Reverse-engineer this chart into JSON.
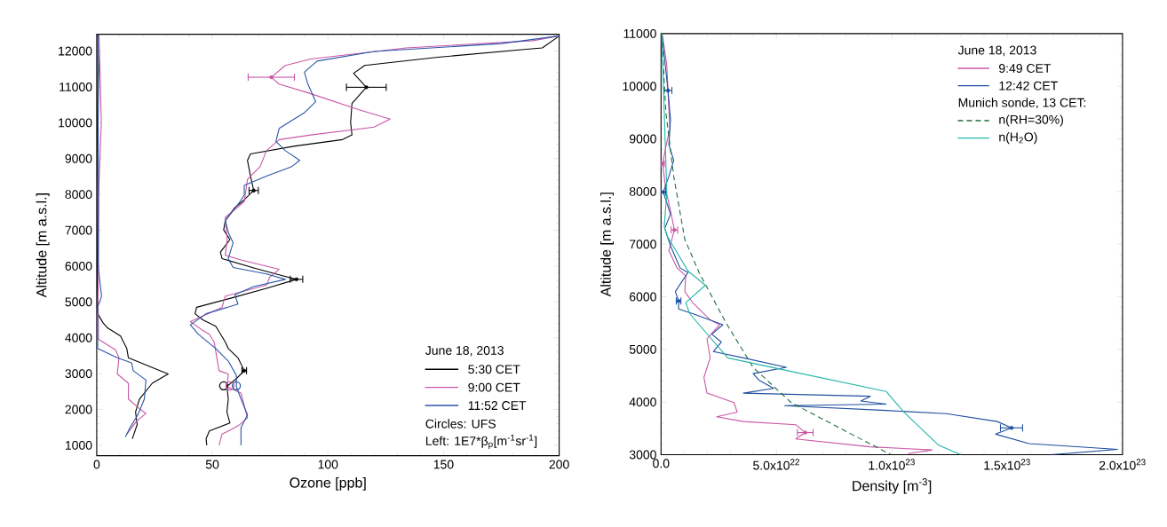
{
  "chart_data": [
    {
      "type": "line",
      "xlabel": "Ozone [ppb]",
      "ylabel": "Altitude [m a.s.l.]",
      "legend_title": "June 18, 2013",
      "annotations": [
        "Circles: UFS",
        "Left: 1E7*β$_{p}$[m$^{-1}$sr$^{-1}$]"
      ],
      "xlim": [
        0,
        200
      ],
      "ylim": [
        710,
        12470
      ],
      "xticks": [
        0,
        50,
        100,
        150,
        200
      ],
      "yticks": [
        1000,
        2000,
        3000,
        4000,
        5000,
        6000,
        7000,
        8000,
        9000,
        10000,
        11000,
        12000
      ],
      "legend": "bottom right",
      "series": [
        {
          "name": "5:30 CET",
          "color": "#000000",
          "x": [
            199.6,
            192.7,
            185.9,
            147.5,
            115.9,
            111.1,
            116.6,
            110.4,
            109.8,
            110.4,
            106.3,
            85.7,
            66.5,
            65.2,
            66.5,
            67.9,
            63.8,
            59.7,
            55.6,
            54.9,
            57.6,
            53.5,
            54.2,
            67.9,
            80.3,
            86.4,
            73.4,
            58.3,
            43.2,
            42.5,
            45.9,
            51.5,
            55.6,
            56.9,
            61.1,
            63.8,
            60.4,
            56.3,
            56.9,
            56.3,
            57.6,
            48.7,
            47.3,
            47.6
          ],
          "values": [
            12400,
            12090,
            12050,
            11830,
            11600,
            11380,
            10990,
            10540,
            10010,
            9660,
            9530,
            9350,
            9130,
            8950,
            8510,
            8110,
            7850,
            7630,
            7270,
            7010,
            6740,
            6390,
            6210,
            5950,
            5730,
            5630,
            5380,
            5110,
            4850,
            4670,
            4500,
            4320,
            3880,
            3700,
            3440,
            3080,
            2860,
            2640,
            2290,
            1930,
            1620,
            1400,
            1180,
            1000
          ],
          "xerrors": [
            null,
            null,
            null,
            null,
            null,
            null,
            8.6,
            null,
            null,
            null,
            null,
            null,
            null,
            null,
            null,
            2,
            null,
            null,
            null,
            null,
            null,
            null,
            null,
            null,
            null,
            2.7,
            null,
            null,
            null,
            null,
            null,
            null,
            null,
            null,
            null,
            1,
            null,
            null,
            null,
            null,
            null,
            null,
            null,
            null
          ]
        },
        {
          "name": "9:00 CET",
          "color": "#c957a6",
          "x": [
            199.6,
            188.6,
            133.8,
            92.6,
            81.6,
            75.5,
            78.9,
            92.6,
            113.2,
            126.9,
            120.0,
            92.6,
            78.9,
            73.4,
            70.7,
            65.2,
            63.8,
            55.6,
            56.4,
            55.6,
            62.4,
            78.9,
            74.8,
            73.4,
            55.6,
            54.2,
            40.5,
            45.3,
            48.7,
            50.8,
            52.9,
            56.9,
            56.3,
            62.4,
            65.2,
            61.1,
            54.2,
            52.9
          ],
          "values": [
            12420,
            12290,
            12090,
            11780,
            11600,
            11270,
            11080,
            10810,
            10370,
            10100,
            9880,
            9660,
            9530,
            9220,
            8780,
            8420,
            7800,
            7360,
            6740,
            6300,
            6170,
            5910,
            5690,
            5470,
            5160,
            4850,
            4450,
            4230,
            4100,
            3880,
            3080,
            2990,
            2640,
            2460,
            1760,
            1540,
            1310,
            1000
          ],
          "xerrors": [
            null,
            null,
            null,
            null,
            null,
            10,
            null,
            null,
            null,
            null,
            null,
            null,
            null,
            null,
            null,
            null,
            null,
            null,
            null,
            null,
            null,
            null,
            null,
            null,
            null,
            null,
            null,
            null,
            null,
            null,
            null,
            null,
            null,
            null,
            null,
            null,
            null,
            null
          ]
        },
        {
          "name": "11:52 CET",
          "color": "#2a55a8",
          "x": [
            199.6,
            174.9,
            120.0,
            95.3,
            89.8,
            91.2,
            94.7,
            89.8,
            78.9,
            77.5,
            81.6,
            87.8,
            84.4,
            73.4,
            63.8,
            63.8,
            61.1,
            55.6,
            57.0,
            59.0,
            56.9,
            58.3,
            59.0,
            73.4,
            81.6,
            67.9,
            59.7,
            61.1,
            47.3,
            40.5,
            43.9,
            51.5,
            56.9,
            60.4,
            60.4,
            62.4,
            65.2,
            62.4,
            62.4
          ],
          "values": [
            12420,
            12210,
            11990,
            11720,
            11410,
            11100,
            10590,
            10280,
            9840,
            9480,
            9220,
            8950,
            8780,
            8510,
            8250,
            7980,
            7720,
            7270,
            6920,
            6650,
            6210,
            6040,
            5960,
            5780,
            5630,
            5430,
            5200,
            4940,
            4670,
            4360,
            4100,
            3700,
            3350,
            2950,
            2640,
            2290,
            1850,
            1490,
            1000
          ]
        },
        {
          "color": "#000000",
          "x": [
            0.5,
            0.3,
            0.4,
            0.3,
            0.3,
            0.4,
            2.8,
            4.8,
            10.3,
            13.0,
            13.7,
            24.0,
            30.9,
            24.0,
            18.5,
            16.8,
            17.5,
            15.4
          ],
          "values": [
            12470,
            10000,
            8000,
            6000,
            5000,
            4670,
            4410,
            4270,
            4050,
            3700,
            3440,
            3170,
            2990,
            2730,
            2290,
            1930,
            1580,
            1180
          ]
        },
        {
          "color": "#c957a6",
          "x": [
            1.0,
            2.0,
            0.8,
            0.8,
            0.5,
            0.7,
            0.7,
            8.2,
            9.6,
            8.9,
            13.7,
            13.7,
            18.5,
            21.3,
            17.2,
            13.0
          ],
          "values": [
            12470,
            10000,
            8000,
            6000,
            5000,
            4670,
            3960,
            3660,
            3440,
            2990,
            2730,
            2290,
            2020,
            1890,
            1670,
            1310
          ]
        },
        {
          "color": "#2a55a8",
          "x": [
            0.5,
            1.0,
            0.6,
            0.8,
            0.6,
            2.1,
            0.4,
            0.4,
            8.9,
            15.1,
            15.8,
            21.3,
            20.6,
            17.8,
            14.4,
            12.4
          ],
          "values": [
            12470,
            11500,
            10000,
            8000,
            6000,
            5160,
            4850,
            3700,
            3440,
            3300,
            3080,
            2820,
            2290,
            1850,
            1490,
            1230
          ]
        },
        {
          "type": "scatter",
          "marker": "circle",
          "color": "#000000",
          "x": [
            54.9
          ],
          "values": [
            2660
          ]
        },
        {
          "type": "scatter",
          "marker": "circle",
          "color": "#c957a6",
          "x": [
            57.6
          ],
          "values": [
            2660
          ]
        },
        {
          "type": "scatter",
          "marker": "circle",
          "color": "#2a55a8",
          "x": [
            60.4
          ],
          "values": [
            2660
          ]
        }
      ]
    },
    {
      "type": "line",
      "xlabel": "Density [m$^{-3}$]",
      "ylabel": "Altitude [m a.s.l.]",
      "legend_title": "June 18, 2013",
      "annotations": [
        "Munich sonde, 13 CET:"
      ],
      "xlim": [
        0,
        2e+23
      ],
      "ylim": [
        3000,
        11000
      ],
      "xticks": [
        {
          "value": 0,
          "label": "0.0"
        },
        {
          "value": 5e+22,
          "label": "5.0x10$^{22}$"
        },
        {
          "value": 1e+23,
          "label": "1.0x10$^{23}$"
        },
        {
          "value": 1.5e+23,
          "label": "1.5x10$^{23}$"
        },
        {
          "value": 2e+23,
          "label": "2.0x10$^{23}$"
        }
      ],
      "yticks": [
        3000,
        4000,
        5000,
        6000,
        7000,
        8000,
        9000,
        10000,
        11000
      ],
      "legend": "top right",
      "series": [
        {
          "name": "9:49 CET",
          "color": "#c957a6",
          "x": [
            5e+20,
            2.5e+21,
            3e+21,
            3.8e+21,
            2e+21,
            7e+20,
            2e+21,
            4.4e+21,
            5.8e+21,
            3.4e+21,
            6.9e+21,
            1.07e+22,
            1.03e+22,
            1.37e+22,
            2.13e+22,
            2.54e+22,
            1.99e+22,
            2.13e+22,
            1.86e+22,
            1.99e+22,
            3.16e+22,
            3.3e+22,
            2.41e+22,
            3.57e+22,
            5.84e+22,
            6.25e+22,
            5.84e+22,
            9.07e+22,
            1.175e+23,
            1.07e+23
          ],
          "values": [
            11000,
            10400,
            9920,
            9190,
            8830,
            8530,
            8050,
            7570,
            7270,
            6880,
            6550,
            6400,
            6100,
            5890,
            5560,
            5470,
            5200,
            4840,
            4470,
            4170,
            3990,
            3810,
            3720,
            3630,
            3570,
            3420,
            3300,
            3150,
            3090,
            3020
          ],
          "xerrors": [
            null,
            null,
            null,
            null,
            null,
            7e+20,
            null,
            null,
            1.4e+21,
            null,
            null,
            null,
            null,
            null,
            null,
            null,
            null,
            null,
            null,
            null,
            null,
            null,
            null,
            null,
            null,
            3.4e+21,
            null,
            null,
            null,
            null
          ]
        },
        {
          "name": "12:42 CET",
          "color": "#1f4f9e",
          "x": [
            3e+20,
            1.4e+21,
            3e+21,
            4.1e+21,
            3.4e+21,
            5.5e+21,
            3.4e+21,
            1e+21,
            4.1e+21,
            1.6e+21,
            4.1e+21,
            8.2e+21,
            1.17e+22,
            8.9e+21,
            6.2e+21,
            7.6e+21,
            7.6e+21,
            1.37e+22,
            2.68e+22,
            2.2e+22,
            2.61e+22,
            2.27e+22,
            3.57e+22,
            5.43e+22,
            3.99e+22,
            4.26e+22,
            4.88e+22,
            3.57e+22,
            9.07e+22,
            8.66e+22,
            9.76e+22,
            5.36e+22,
            9.76e+22,
            1.237e+23,
            1.457e+23,
            1.519e+23,
            1.45e+23,
            1.595e+23,
            1.979e+23,
            1.691e+23
          ],
          "values": [
            11000,
            10580,
            9920,
            9370,
            8890,
            8590,
            8290,
            7990,
            7570,
            7300,
            6970,
            6550,
            6460,
            6280,
            6100,
            5920,
            5770,
            5680,
            5470,
            5290,
            5140,
            4960,
            4840,
            4660,
            4540,
            4410,
            4260,
            4170,
            4110,
            4020,
            3960,
            3930,
            3840,
            3780,
            3630,
            3510,
            3390,
            3210,
            3100,
            3000
          ],
          "xerrors": [
            null,
            null,
            1.7e+21,
            null,
            null,
            null,
            null,
            1e+21,
            null,
            null,
            null,
            null,
            null,
            null,
            null,
            1e+21,
            null,
            null,
            null,
            null,
            null,
            null,
            null,
            null,
            null,
            null,
            null,
            null,
            null,
            null,
            null,
            null,
            null,
            null,
            null,
            4.8e+21,
            null,
            null,
            null,
            null
          ]
        },
        {
          "name": "n(RH=30%)",
          "color": "#1e6e3e",
          "line_style": "dashed",
          "x": [
            3e+20,
            2.1e+21,
            5.5e+21,
            1.03e+22,
            1.65e+22,
            2.82e+22,
            3.99e+22,
            5.64e+22,
            8.25e+22,
            9.97e+22
          ],
          "values": [
            11000,
            9500,
            8290,
            7090,
            6460,
            5500,
            4660,
            3990,
            3390,
            3000
          ]
        },
        {
          "name": "n(H$_{2}$O)",
          "color": "#22b5aa",
          "x": [
            3e+20,
            1.4e+21,
            2.5e+21,
            1.4e+21,
            2.7e+21,
            1.17e+22,
            1.92e+22,
            1.07e+22,
            1.24e+22,
            2.89e+22,
            5.22e+22,
            9.76e+22,
            1.052e+23,
            1.203e+23,
            1.299e+23
          ],
          "values": [
            11000,
            9500,
            7990,
            7330,
            7150,
            6490,
            6220,
            5890,
            5680,
            4840,
            4620,
            4200,
            3810,
            3180,
            3000
          ]
        }
      ]
    }
  ]
}
